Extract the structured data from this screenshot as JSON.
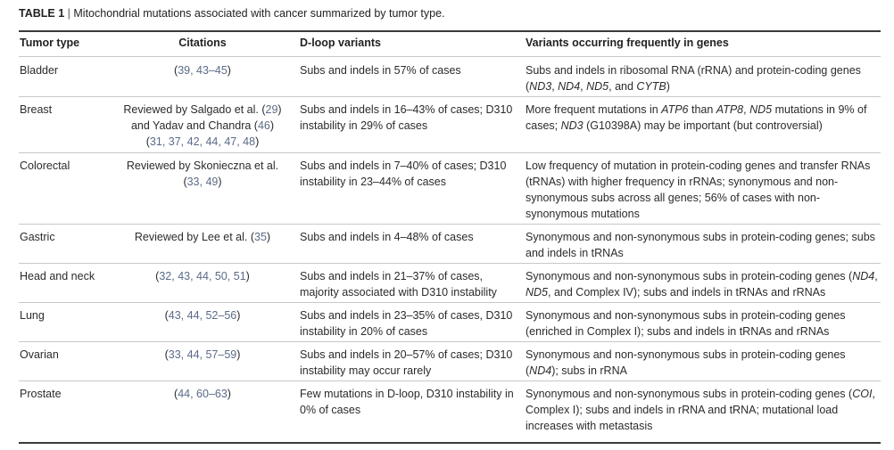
{
  "caption": {
    "label": "TABLE 1",
    "separator": " | ",
    "text": "Mitochondrial mutations associated with cancer summarized by tumor type."
  },
  "columns": [
    "Tumor type",
    "Citations",
    "D-loop variants",
    "Variants occurring frequently in genes"
  ],
  "rows": [
    {
      "tumor": "Bladder",
      "citations_lines": [
        [
          [
            "(",
            ""
          ],
          [
            "39, 43–45",
            "ref"
          ],
          [
            ")",
            ""
          ]
        ]
      ],
      "dloop": "Subs and indels in 57% of cases",
      "genes": [
        [
          "Subs and indels in ribosomal RNA (rRNA) and protein-coding genes (",
          ""
        ],
        [
          "ND3",
          "gene"
        ],
        [
          ", ",
          ""
        ],
        [
          "ND4",
          "gene"
        ],
        [
          ", ",
          ""
        ],
        [
          "ND5",
          "gene"
        ],
        [
          ", and ",
          ""
        ],
        [
          "CYTB",
          "gene"
        ],
        [
          ")",
          ""
        ]
      ]
    },
    {
      "tumor": "Breast",
      "citations_lines": [
        [
          [
            "Reviewed by Salgado et al. (",
            ""
          ],
          [
            "29",
            "ref"
          ],
          [
            ")",
            ""
          ]
        ],
        [
          [
            "and Yadav and Chandra (",
            ""
          ],
          [
            "46",
            "ref"
          ],
          [
            ")",
            ""
          ]
        ],
        [
          [
            "(",
            ""
          ],
          [
            "31, 37, 42, 44, 47, 48",
            "ref"
          ],
          [
            ")",
            ""
          ]
        ]
      ],
      "dloop": "Subs and indels in 16–43% of cases; D310 instability in 29% of cases",
      "genes": [
        [
          "More frequent mutations in ",
          ""
        ],
        [
          "ATP6",
          "gene"
        ],
        [
          " than ",
          ""
        ],
        [
          "ATP8",
          "gene"
        ],
        [
          ", ",
          ""
        ],
        [
          "ND5",
          "gene"
        ],
        [
          " mutations in 9% of cases; ",
          ""
        ],
        [
          "ND3",
          "gene"
        ],
        [
          " (G10398A) may be important (but controversial)",
          ""
        ]
      ]
    },
    {
      "tumor": "Colorectal",
      "citations_lines": [
        [
          [
            "Reviewed by Skonieczna et al.",
            ""
          ]
        ],
        [
          [
            "(",
            ""
          ],
          [
            "33, 49",
            "ref"
          ],
          [
            ")",
            ""
          ]
        ]
      ],
      "dloop": "Subs and indels in 7–40% of cases; D310 instability in 23–44% of cases",
      "genes": [
        [
          "Low frequency of mutation in protein-coding genes and transfer RNAs (tRNAs) with higher frequency in rRNAs; synonymous and non-synonymous subs across all genes; 56% of cases with non-synonymous mutations",
          ""
        ]
      ]
    },
    {
      "tumor": "Gastric",
      "citations_lines": [
        [
          [
            "Reviewed by Lee et al. (",
            ""
          ],
          [
            "35",
            "ref"
          ],
          [
            ")",
            ""
          ]
        ]
      ],
      "dloop": "Subs and indels in 4–48% of cases",
      "genes": [
        [
          "Synonymous and non-synonymous subs in protein-coding genes; subs and indels in tRNAs",
          ""
        ]
      ]
    },
    {
      "tumor": "Head and neck",
      "citations_lines": [
        [
          [
            "(",
            ""
          ],
          [
            "32, 43, 44, 50, 51",
            "ref"
          ],
          [
            ")",
            ""
          ]
        ]
      ],
      "dloop": "Subs and indels in 21–37% of cases, majority associated with D310 instability",
      "genes": [
        [
          "Synonymous and non-synonymous subs in protein-coding genes (",
          ""
        ],
        [
          "ND4",
          "gene"
        ],
        [
          ", ",
          ""
        ],
        [
          "ND5",
          "gene"
        ],
        [
          ", and Complex IV); subs and indels in tRNAs and rRNAs",
          ""
        ]
      ]
    },
    {
      "tumor": "Lung",
      "citations_lines": [
        [
          [
            "(",
            ""
          ],
          [
            "43, 44, 52–56",
            "ref"
          ],
          [
            ")",
            ""
          ]
        ]
      ],
      "dloop": "Subs and indels in 23–35% of cases, D310 instability in 20% of cases",
      "genes": [
        [
          "Synonymous and non-synonymous subs in protein-coding genes (enriched in Complex I); subs and indels in tRNAs and rRNAs",
          ""
        ]
      ]
    },
    {
      "tumor": "Ovarian",
      "citations_lines": [
        [
          [
            "(",
            ""
          ],
          [
            "33, 44, 57–59",
            "ref"
          ],
          [
            ")",
            ""
          ]
        ]
      ],
      "dloop": "Subs and indels in 20–57% of cases; D310 instability may occur rarely",
      "genes": [
        [
          "Synonymous and non-synonymous subs in protein-coding genes (",
          ""
        ],
        [
          "ND4",
          "gene"
        ],
        [
          "); subs in rRNA",
          ""
        ]
      ]
    },
    {
      "tumor": "Prostate",
      "citations_lines": [
        [
          [
            "(",
            ""
          ],
          [
            "44, 60–63",
            "ref"
          ],
          [
            ")",
            ""
          ]
        ]
      ],
      "dloop": "Few mutations in D-loop, D310 instability in 0% of cases",
      "genes": [
        [
          "Synonymous and non-synonymous subs in protein-coding genes (",
          ""
        ],
        [
          "COI",
          "gene"
        ],
        [
          ", Complex I); subs and indels in rRNA and tRNA; mutational load increases with metastasis",
          ""
        ]
      ]
    }
  ]
}
